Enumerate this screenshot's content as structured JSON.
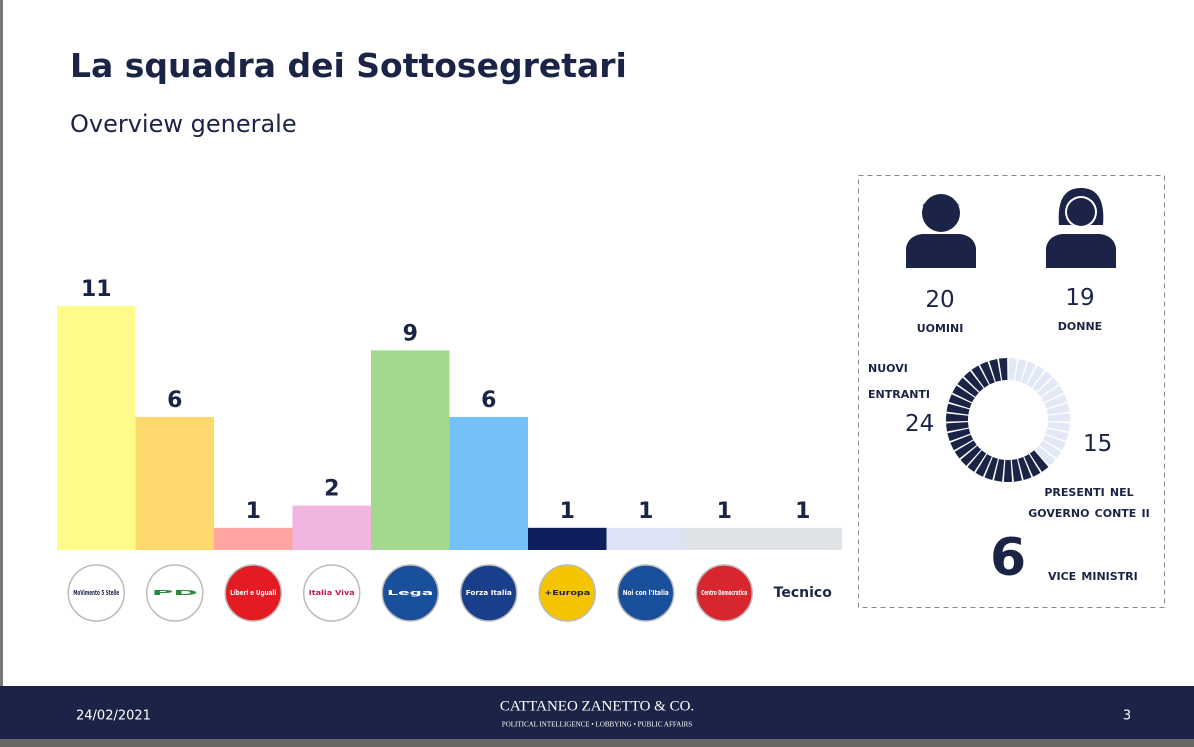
{
  "header": {
    "title": "La squadra dei Sottosegretari",
    "subtitle": "Overview generale"
  },
  "chart_data": {
    "type": "bar",
    "categories": [
      "MoVimento 5 Stelle",
      "PD",
      "Liberi e Uguali",
      "Italia Viva",
      "Lega",
      "Forza Italia",
      "+Europa",
      "Noi con l'Italia",
      "Centro Democratico",
      "Tecnico"
    ],
    "values": [
      11,
      6,
      1,
      2,
      9,
      6,
      1,
      1,
      1,
      1
    ],
    "colors": [
      "#fffb8a",
      "#ffd96e",
      "#ffa4a0",
      "#f1b6e0",
      "#a2d98f",
      "#75c0f8",
      "#0f1e5c",
      "#dde3f5",
      "#dfe3e6",
      "#dfe3e6"
    ],
    "ylim": [
      0,
      11
    ]
  },
  "stats": {
    "men": {
      "value": 20,
      "label": "Uomini"
    },
    "women": {
      "value": 19,
      "label": "Donne"
    },
    "new": {
      "value": 24,
      "label": "Nuovi entranti",
      "color": "#1b2446"
    },
    "previous": {
      "value": 15,
      "label": "Presenti nel governo Conte II",
      "color": "#e3e8f7"
    },
    "vice": {
      "value": 6,
      "label": "Vice ministri"
    }
  },
  "footer": {
    "date": "24/02/2021",
    "company": "CATTANEO ZANETTO & CO.",
    "tagline": "POLITICAL INTELLIGENCE • LOBBYING • PUBLIC AFFAIRS",
    "page": "3"
  }
}
